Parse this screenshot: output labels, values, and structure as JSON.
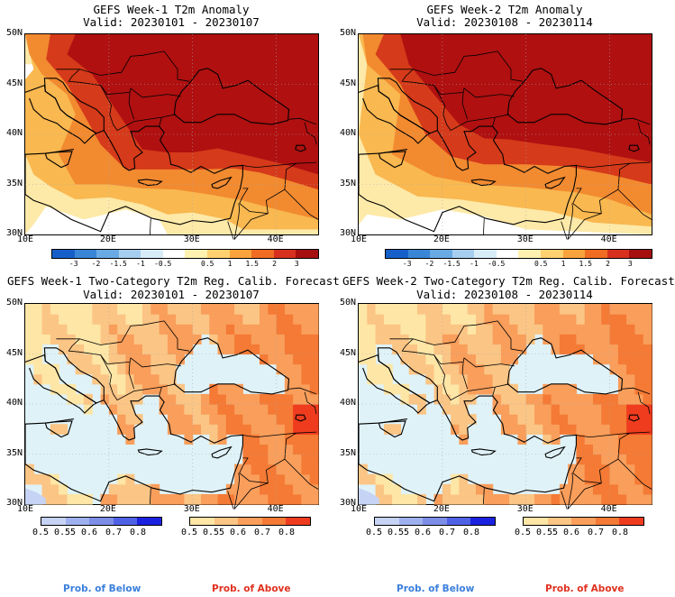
{
  "panels": [
    {
      "title": "GEFS Week-1 T2m Anomaly",
      "valid": "Valid: 20230101 - 20230107"
    },
    {
      "title": "GEFS Week-2 T2m Anomaly",
      "valid": "Valid: 20230108 - 20230114"
    },
    {
      "title": "GEFS Week-1 Two-Category T2m Reg. Calib. Forecast",
      "valid": "Valid: 20230101 - 20230107"
    },
    {
      "title": "GEFS Week-2 Two-Category T2m Reg. Calib. Forecast",
      "valid": "Valid: 20230108 - 20230114"
    }
  ],
  "lat_labels": [
    "50N",
    "45N",
    "40N",
    "35N",
    "30N"
  ],
  "lon_labels": [
    "10E",
    "20E",
    "30E",
    "40E"
  ],
  "anomaly_scale": {
    "labels": [
      "-3",
      "-2",
      "-1.5",
      "-1",
      "-0.5",
      "0.5",
      "1",
      "1.5",
      "2",
      "3"
    ],
    "colors": [
      "#1560c8",
      "#3a86d6",
      "#6aaae4",
      "#a6cef0",
      "#d8ecf8",
      "#ffffff",
      "#fff1b0",
      "#fdd070",
      "#f8a33c",
      "#ef6c22",
      "#d7301f",
      "#a50f0f"
    ]
  },
  "below_scale": {
    "labels": [
      "0.5",
      "0.55",
      "0.6",
      "0.7",
      "0.8"
    ],
    "colors": [
      "#c6d3f5",
      "#9fb0ee",
      "#7d8ee8",
      "#4f62e6",
      "#1a22e0"
    ],
    "caption": "Prob. of Below",
    "caption_color": "#3a7fdc"
  },
  "above_scale": {
    "labels": [
      "0.5",
      "0.55",
      "0.6",
      "0.7",
      "0.8"
    ],
    "colors": [
      "#fde6a6",
      "#fbc585",
      "#f99e5b",
      "#f47a35",
      "#ef3c1e"
    ],
    "caption": "Prob. of Above",
    "caption_color": "#e0301e"
  },
  "map_colors": {
    "sea": "#dff2f8",
    "warm_dark": "#b01010",
    "warm": "#d53a1a",
    "mid": "#f28a30",
    "light": "#f9b850",
    "pale": "#fde9a8"
  }
}
